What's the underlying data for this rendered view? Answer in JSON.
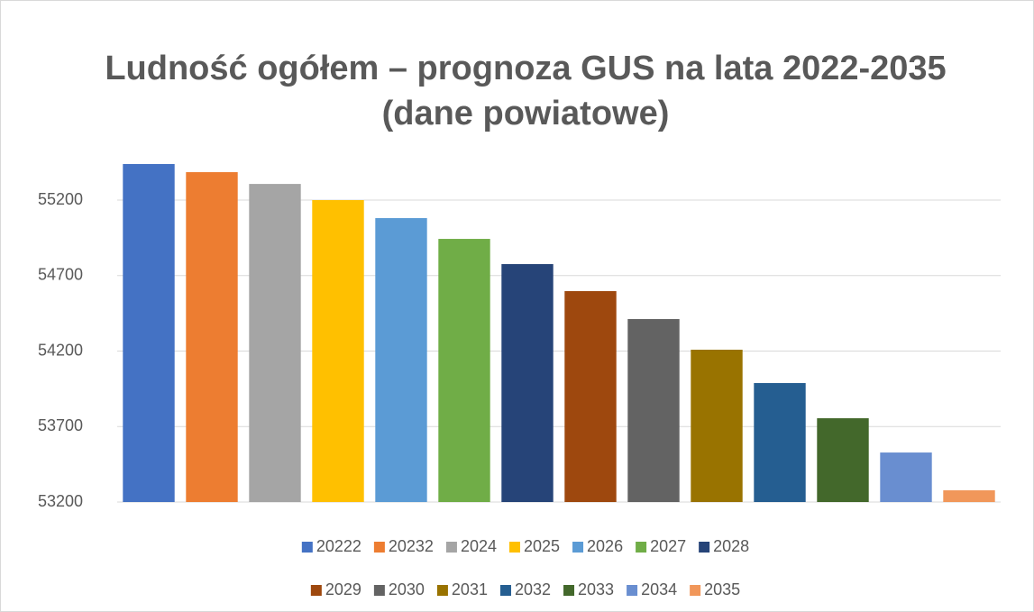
{
  "chart_data": {
    "type": "bar",
    "title": [
      "Ludność ogółem – prognoza GUS na lata 2022-2035",
      "(dane powiatowe)"
    ],
    "series": [
      {
        "name": "20222",
        "color": "#4472c4",
        "values": [
          55439
        ]
      },
      {
        "name": "20232",
        "color": "#ed7d31",
        "values": [
          55385
        ]
      },
      {
        "name": "2024",
        "color": "#a5a5a5",
        "values": [
          55307
        ]
      },
      {
        "name": "2025",
        "color": "#ffc000",
        "values": [
          55200
        ]
      },
      {
        "name": "2026",
        "color": "#5b9bd5",
        "values": [
          55081
        ]
      },
      {
        "name": "2027",
        "color": "#70ad47",
        "values": [
          54943
        ]
      },
      {
        "name": "2028",
        "color": "#264478",
        "values": [
          54776
        ]
      },
      {
        "name": "2029",
        "color": "#9e480e",
        "values": [
          54597
        ]
      },
      {
        "name": "2030",
        "color": "#636363",
        "values": [
          54412
        ]
      },
      {
        "name": "2031",
        "color": "#997300",
        "values": [
          54209
        ]
      },
      {
        "name": "2032",
        "color": "#255e91",
        "values": [
          53988
        ]
      },
      {
        "name": "2033",
        "color": "#43682b",
        "values": [
          53755
        ]
      },
      {
        "name": "2034",
        "color": "#698ed0",
        "values": [
          53528
        ]
      },
      {
        "name": "2035",
        "color": "#f1975a",
        "values": [
          53278
        ]
      }
    ],
    "ylim": [
      53200,
      55500
    ],
    "yticks": [
      53200,
      53700,
      54200,
      54700,
      55200
    ],
    "grid": true,
    "legend": "bottom"
  }
}
